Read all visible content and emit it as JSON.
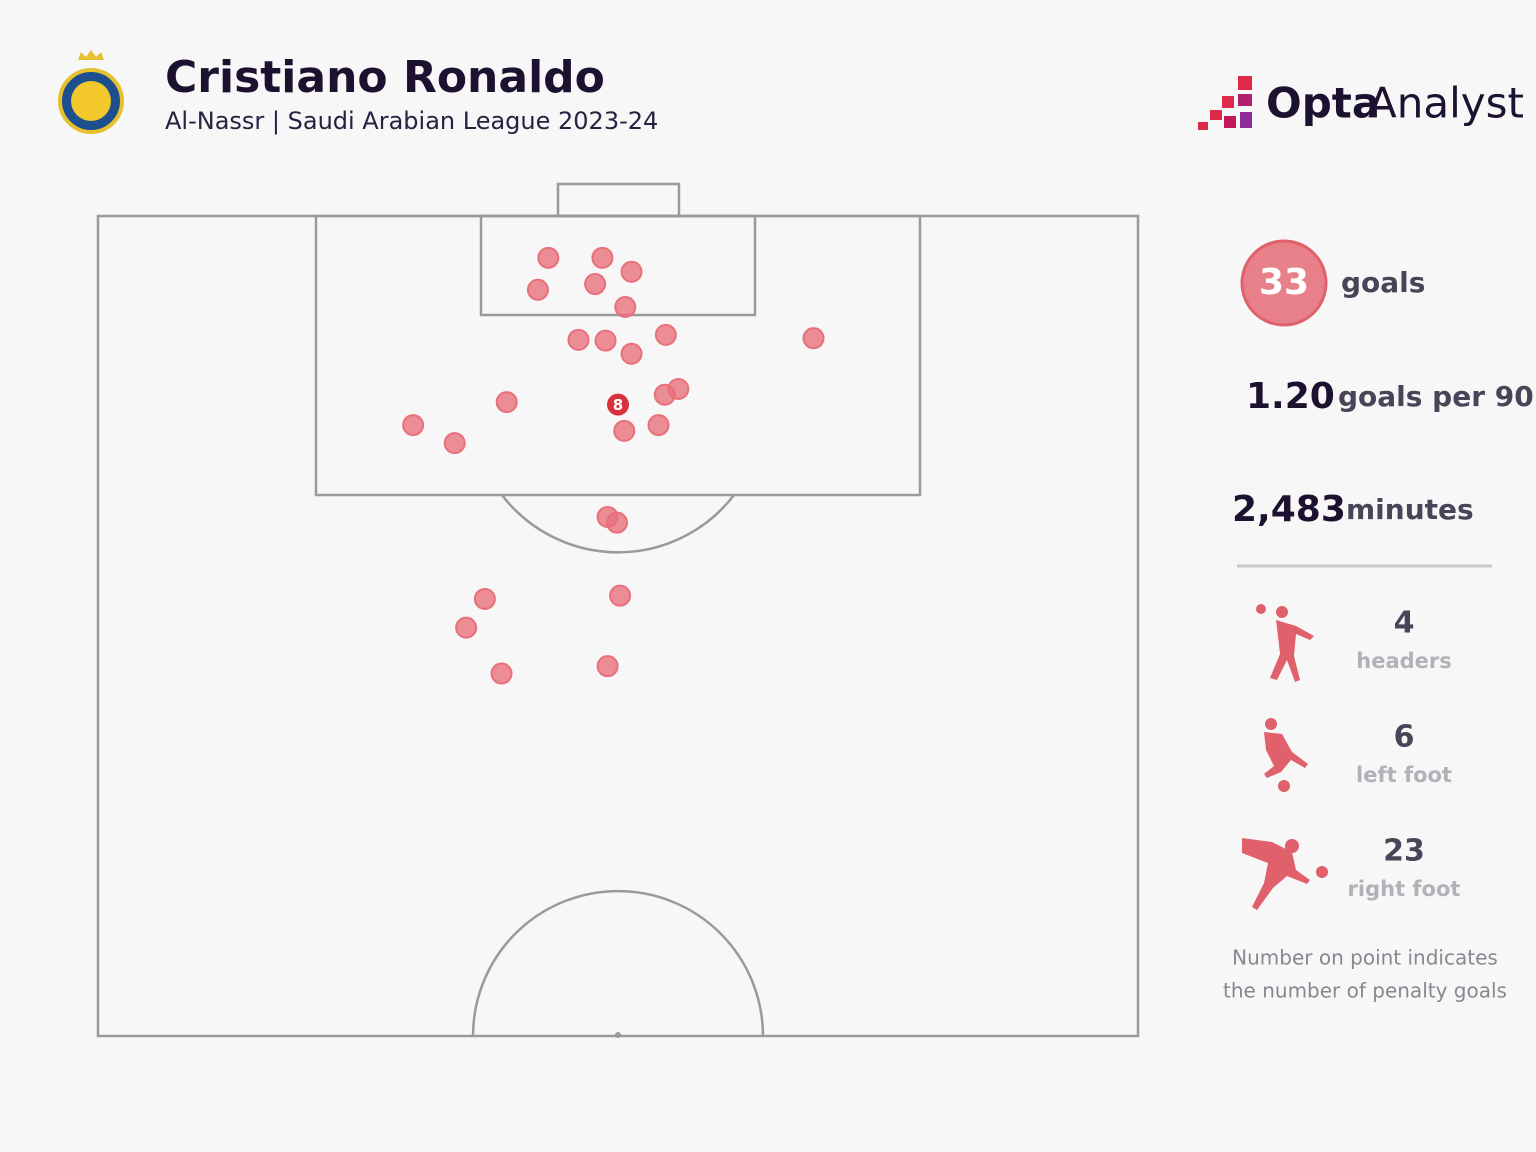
{
  "header": {
    "title": "Cristiano Ronaldo",
    "subtitle": "Al-Nassr | Saudi Arabian League 2023-24"
  },
  "brand": {
    "name": "Opta",
    "suffix": "Analyst"
  },
  "stats": {
    "goals": {
      "value": 33,
      "label": "goals"
    },
    "per90": {
      "value": "1.20",
      "label": "goals per 90"
    },
    "minutes": {
      "value": "2,483",
      "label": "minutes"
    },
    "types": [
      {
        "value": 4,
        "label": "headers"
      },
      {
        "value": 6,
        "label": "left foot"
      },
      {
        "value": 23,
        "label": "right foot"
      }
    ]
  },
  "note": [
    "Number on point indicates",
    "the number of penalty goals"
  ],
  "chart_data": {
    "type": "scatter",
    "x": [
      43.3,
      48.5,
      51.3,
      42.3,
      47.8,
      50.7,
      54.6,
      68.8,
      46.2,
      48.8,
      51.3,
      55.8,
      54.5,
      39.3,
      30.3,
      34.3,
      50.6,
      53.9,
      49.0,
      49.9,
      37.2,
      50.2,
      35.4,
      38.8,
      49.0
    ],
    "y": [
      5.1,
      5.1,
      6.8,
      9.0,
      8.3,
      11.1,
      14.5,
      14.9,
      15.1,
      15.2,
      16.8,
      21.1,
      21.8,
      22.7,
      25.5,
      27.7,
      26.2,
      25.5,
      36.7,
      37.4,
      46.7,
      46.3,
      50.2,
      55.8,
      54.9
    ],
    "color": "#e8707a",
    "xlim": [
      0,
      100
    ],
    "ylim": [
      0,
      100
    ],
    "penalty": {
      "x": 50.0,
      "y": 23.0,
      "goals": 8,
      "color": "#d9323f"
    }
  }
}
